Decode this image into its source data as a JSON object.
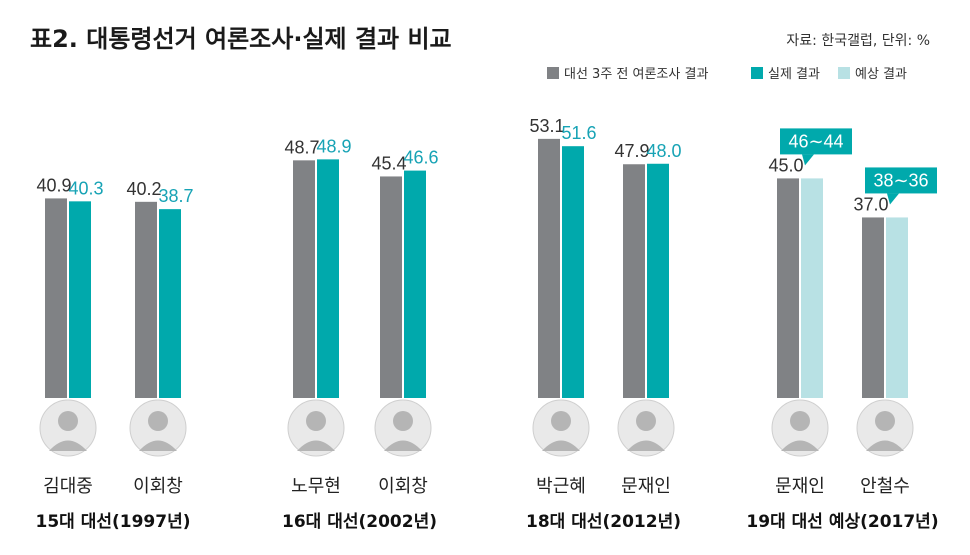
{
  "title": "표2. 대통령선거 여론조사·실제 결과 비교",
  "source": "자료: 한국갤럽, 단위: %",
  "colors": {
    "poll": "#808285",
    "actual": "#00a9ac",
    "expected": "#b8e1e4",
    "value_actual_text": "#17a3b5",
    "callout": "#00a9ac"
  },
  "chart_data": {
    "type": "bar",
    "ylim": [
      0,
      60
    ],
    "legend_position": "top-right",
    "series": [
      {
        "name": "대선 3주 전 여론조사 결과",
        "key": "poll"
      },
      {
        "name": "실제 결과",
        "key": "actual"
      },
      {
        "name": "예상 결과",
        "key": "expected"
      }
    ],
    "groups": [
      {
        "label": "15대 대선(1997년)",
        "candidates": [
          {
            "name": "김대중",
            "poll": 40.9,
            "poll_label": "40.9",
            "result": 40.3,
            "result_label": "40.3",
            "result_type": "actual",
            "callout": null
          },
          {
            "name": "이회창",
            "poll": 40.2,
            "poll_label": "40.2",
            "result": 38.7,
            "result_label": "38.7",
            "result_type": "actual",
            "callout": null
          }
        ]
      },
      {
        "label": "16대 대선(2002년)",
        "candidates": [
          {
            "name": "노무현",
            "poll": 48.7,
            "poll_label": "48.7",
            "result": 48.9,
            "result_label": "48.9",
            "result_type": "actual",
            "callout": null
          },
          {
            "name": "이회창",
            "poll": 45.4,
            "poll_label": "45.4",
            "result": 46.6,
            "result_label": "46.6",
            "result_type": "actual",
            "callout": null
          }
        ]
      },
      {
        "label": "18대 대선(2012년)",
        "candidates": [
          {
            "name": "박근혜",
            "poll": 53.1,
            "poll_label": "53.1",
            "result": 51.6,
            "result_label": "51.6",
            "result_type": "actual",
            "callout": null
          },
          {
            "name": "문재인",
            "poll": 47.9,
            "poll_label": "47.9",
            "result": 48.0,
            "result_label": "48.0",
            "result_type": "actual",
            "callout": null
          }
        ]
      },
      {
        "label": "19대 대선 예상(2017년)",
        "candidates": [
          {
            "name": "문재인",
            "poll": 45.0,
            "poll_label": "45.0",
            "result": 45.0,
            "result_label": "",
            "result_type": "expected",
            "callout": "46∼44"
          },
          {
            "name": "안철수",
            "poll": 37.0,
            "poll_label": "37.0",
            "result": 37.0,
            "result_label": "",
            "result_type": "expected",
            "callout": "38∼36"
          }
        ]
      }
    ]
  }
}
